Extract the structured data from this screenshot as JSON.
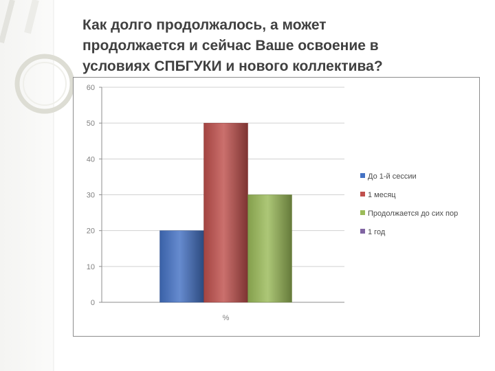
{
  "slide": {
    "title_lines": [
      "Как долго продолжалось, а может",
      "продолжается и сейчас Ваше освоение в",
      "условиях СПБГУКИ и нового коллектива?"
    ]
  },
  "chart_data": {
    "type": "bar",
    "categories": [
      "%"
    ],
    "series": [
      {
        "name": "До 1-й сессии",
        "values": [
          20
        ],
        "color": "#4472c4"
      },
      {
        "name": "1 месяц",
        "values": [
          50
        ],
        "color": "#c0504d"
      },
      {
        "name": "Продолжается до сих пор",
        "values": [
          30
        ],
        "color": "#9bbb59"
      },
      {
        "name": "1 год",
        "values": [
          0
        ],
        "color": "#8064a2"
      }
    ],
    "ylim": [
      0,
      60
    ],
    "yticks": [
      0,
      10,
      20,
      30,
      40,
      50,
      60
    ],
    "grid": true,
    "legend_position": "right"
  }
}
